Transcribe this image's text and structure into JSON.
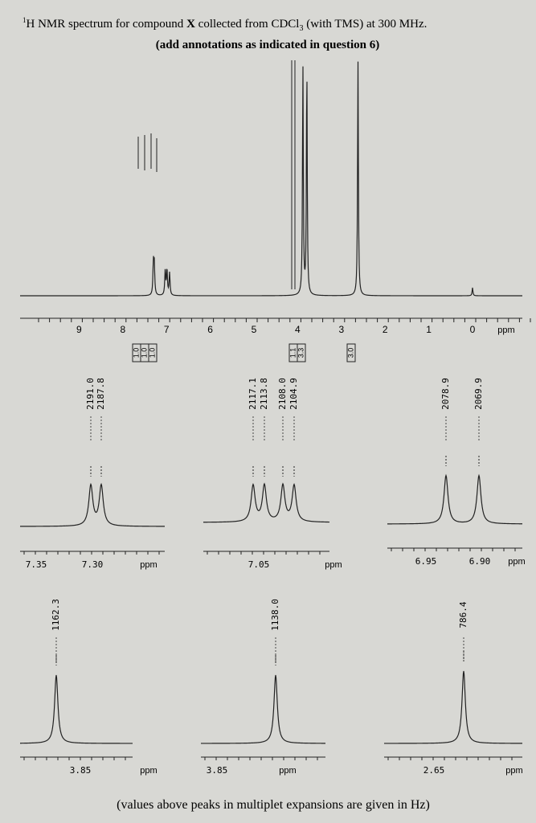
{
  "header": {
    "title_parts": [
      "1",
      "H NMR spectrum for compound ",
      "X",
      " collected from CDCl",
      "3",
      " (with TMS) at 300 MHz."
    ],
    "subtitle": "(add annotations as indicated in question 6)"
  },
  "main": {
    "ticks": [
      "9",
      "8",
      "7",
      "6",
      "5",
      "4",
      "3",
      "2",
      "1",
      "0"
    ],
    "unit": "ppm",
    "integrations": [
      "1.0",
      "1.0",
      "1.0",
      "1.1",
      "3.3",
      "3.0"
    ]
  },
  "expansions": [
    {
      "peaks": [
        "2191.0",
        "2187.8"
      ],
      "ticks": [
        "7.35",
        "7.30"
      ],
      "unit": "ppm"
    },
    {
      "peaks": [
        "2117.1",
        "2113.8",
        "2108.0",
        "2104.9"
      ],
      "ticks": [
        "7.05"
      ],
      "unit": "ppm"
    },
    {
      "peaks": [
        "2078.9",
        "2069.9"
      ],
      "ticks": [
        "6.95",
        "6.90"
      ],
      "unit": "ppm"
    },
    {
      "peaks": [
        "1162.3"
      ],
      "ticks": [
        "3.85"
      ],
      "unit": "ppm"
    },
    {
      "peaks": [
        "1138.0"
      ],
      "ticks": [
        "3.85"
      ],
      "unit": "ppm"
    },
    {
      "peaks": [
        "786.4"
      ],
      "ticks": [
        "2.65"
      ],
      "unit": "ppm"
    }
  ],
  "footer": "(values above peaks in multiplet expansions are given in Hz)"
}
